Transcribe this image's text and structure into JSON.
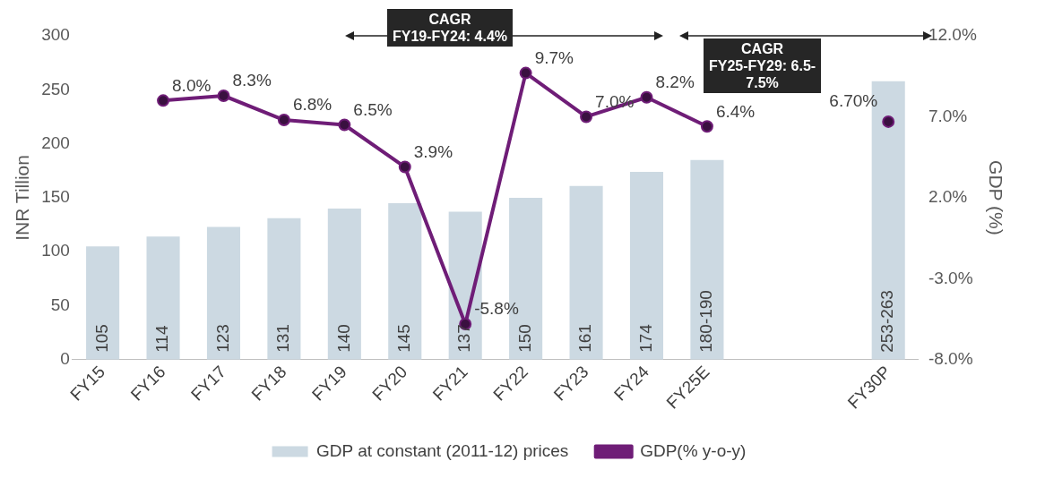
{
  "chart_data": {
    "type": "bar",
    "categories": [
      "FY15",
      "FY16",
      "FY17",
      "FY18",
      "FY19",
      "FY20",
      "FY21",
      "FY22",
      "FY23",
      "FY24",
      "FY25E",
      null,
      null,
      "FY30P"
    ],
    "ylabel": "INR Tillion",
    "y2label": "GDP (%)",
    "ylim": [
      0,
      300
    ],
    "yticks": [
      0,
      50,
      100,
      150,
      200,
      250,
      300
    ],
    "y2lim": [
      -8,
      12
    ],
    "y2ticks": [
      {
        "value": -8,
        "label": "-8.0%"
      },
      {
        "value": -3,
        "label": "-3.0%"
      },
      {
        "value": 2,
        "label": "2.0%"
      },
      {
        "value": 7,
        "label": "7.0%"
      },
      {
        "value": 12,
        "label": "12.0%"
      }
    ],
    "series": [
      {
        "name": "GDP at constant (2011-12) prices",
        "color": "#ccd9e2",
        "values": [
          105,
          114,
          123,
          131,
          140,
          145,
          137,
          150,
          161,
          174,
          185,
          null,
          null,
          258
        ],
        "value_labels": [
          "105",
          "114",
          "123",
          "131",
          "140",
          "145",
          "137",
          "150",
          "161",
          "174",
          "180-190",
          null,
          null,
          "253-263"
        ]
      },
      {
        "name": "GDP(% y-o-y)",
        "type": "line",
        "axis": "y2",
        "color": "#6f1d77",
        "values": [
          null,
          8.0,
          8.3,
          6.8,
          6.5,
          3.9,
          -5.8,
          9.7,
          7.0,
          8.2,
          6.4,
          null,
          null,
          6.7
        ],
        "value_labels": [
          null,
          "8.0%",
          "8.3%",
          "6.8%",
          "6.5%",
          "3.9%",
          "-5.8%",
          "9.7%",
          "7.0%",
          "8.2%",
          "6.4%",
          null,
          null,
          "6.70%"
        ]
      }
    ],
    "marker": "circle",
    "grid": false,
    "legend": "bottom",
    "annotations": [
      "CAGR\nFY19-FY24: 4.4%",
      "CAGR\nFY25-FY29: 6.5-\n7.5%"
    ]
  }
}
